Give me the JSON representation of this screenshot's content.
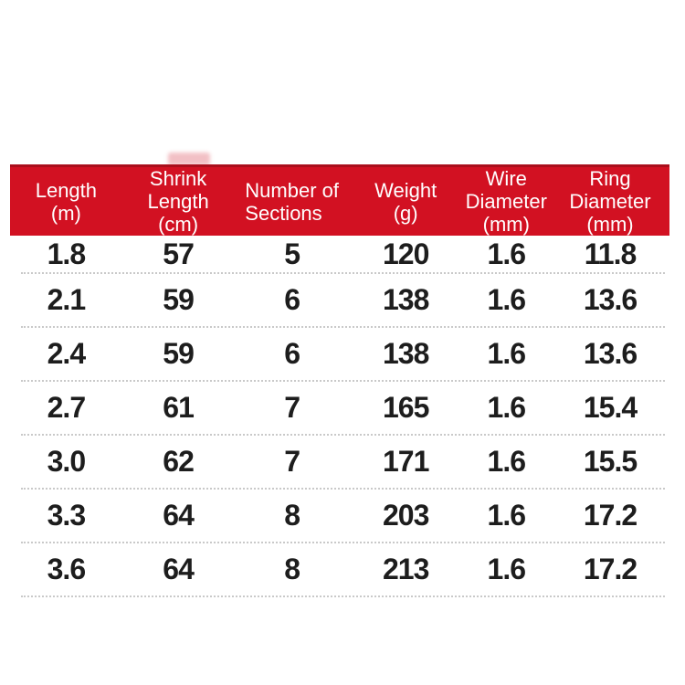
{
  "table": {
    "accent_color": "#d21122",
    "accent_dark_edge": "#aa0f1c",
    "header": {
      "columns": [
        {
          "lines": [
            "Length",
            "(m)"
          ]
        },
        {
          "lines": [
            "Shrink",
            "Length",
            "(cm)"
          ]
        },
        {
          "lines": [
            "Number of",
            "Sections"
          ]
        },
        {
          "lines": [
            "Weight",
            "(g)"
          ]
        },
        {
          "lines": [
            "Wire",
            "Diameter",
            "(mm)"
          ]
        },
        {
          "lines": [
            "Ring",
            "Diameter",
            "(mm)"
          ]
        }
      ]
    },
    "rows": [
      [
        "1.8",
        "57",
        "5",
        "120",
        "1.6",
        "11.8"
      ],
      [
        "2.1",
        "59",
        "6",
        "138",
        "1.6",
        "13.6"
      ],
      [
        "2.4",
        "59",
        "6",
        "138",
        "1.6",
        "13.6"
      ],
      [
        "2.7",
        "61",
        "7",
        "165",
        "1.6",
        "15.4"
      ],
      [
        "3.0",
        "62",
        "7",
        "171",
        "1.6",
        "15.5"
      ],
      [
        "3.3",
        "64",
        "8",
        "203",
        "1.6",
        "17.2"
      ],
      [
        "3.6",
        "64",
        "8",
        "213",
        "1.6",
        "17.2"
      ]
    ]
  },
  "chart_data": {
    "type": "table",
    "title": "",
    "columns": [
      "Length (m)",
      "Shrink Length (cm)",
      "Number of Sections",
      "Weight (g)",
      "Wire Diameter (mm)",
      "Ring Diameter (mm)"
    ],
    "rows": [
      [
        1.8,
        57,
        5,
        120,
        1.6,
        11.8
      ],
      [
        2.1,
        59,
        6,
        138,
        1.6,
        13.6
      ],
      [
        2.4,
        59,
        6,
        138,
        1.6,
        13.6
      ],
      [
        2.7,
        61,
        7,
        165,
        1.6,
        15.4
      ],
      [
        3.0,
        62,
        7,
        171,
        1.6,
        15.5
      ],
      [
        3.3,
        64,
        8,
        203,
        1.6,
        17.2
      ],
      [
        3.6,
        64,
        8,
        213,
        1.6,
        17.2
      ]
    ],
    "layout_hints": {
      "header_background": "#d21122",
      "header_text_color": "#ffffff",
      "body_text_color": "#1d1d1d",
      "row_separator": "dotted #c9c9c9",
      "background": "#ffffff"
    }
  }
}
